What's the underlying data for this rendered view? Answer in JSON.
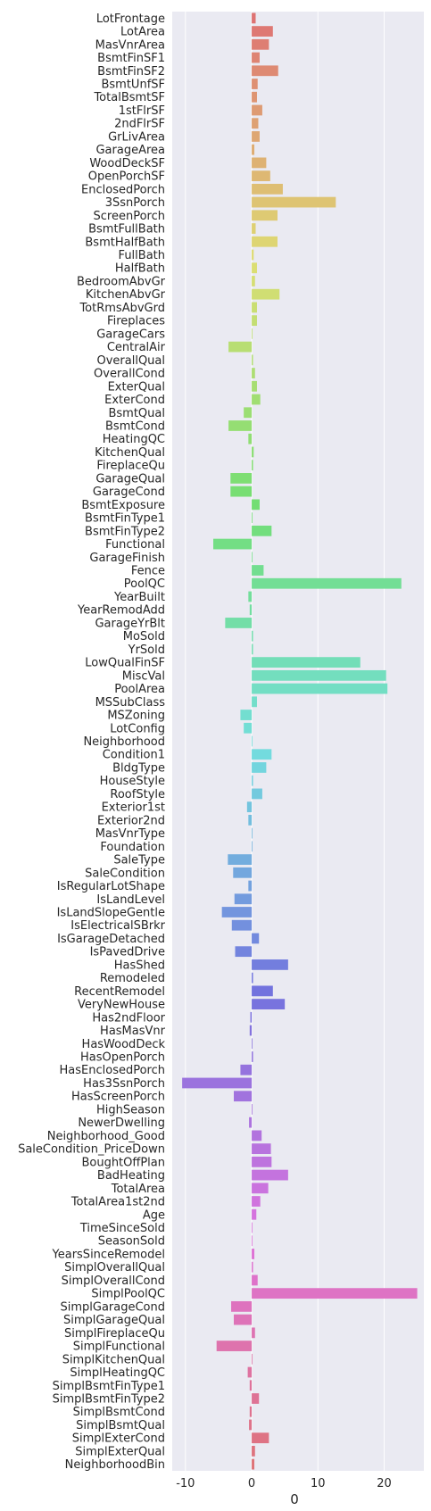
{
  "chart_data": {
    "type": "bar",
    "orientation": "horizontal",
    "xlabel": "0",
    "xlim": [
      -12,
      26
    ],
    "xticks": [
      -10,
      0,
      10,
      20
    ],
    "grid": true,
    "background": "#eaeaf2",
    "palette": "husl",
    "categories": [
      "LotFrontage",
      "LotArea",
      "MasVnrArea",
      "BsmtFinSF1",
      "BsmtFinSF2",
      "BsmtUnfSF",
      "TotalBsmtSF",
      "1stFlrSF",
      "2ndFlrSF",
      "GrLivArea",
      "GarageArea",
      "WoodDeckSF",
      "OpenPorchSF",
      "EnclosedPorch",
      "3SsnPorch",
      "ScreenPorch",
      "BsmtFullBath",
      "BsmtHalfBath",
      "FullBath",
      "HalfBath",
      "BedroomAbvGr",
      "KitchenAbvGr",
      "TotRmsAbvGrd",
      "Fireplaces",
      "GarageCars",
      "CentralAir",
      "OverallQual",
      "OverallCond",
      "ExterQual",
      "ExterCond",
      "BsmtQual",
      "BsmtCond",
      "HeatingQC",
      "KitchenQual",
      "FireplaceQu",
      "GarageQual",
      "GarageCond",
      "BsmtExposure",
      "BsmtFinType1",
      "BsmtFinType2",
      "Functional",
      "GarageFinish",
      "Fence",
      "PoolQC",
      "YearBuilt",
      "YearRemodAdd",
      "GarageYrBlt",
      "MoSold",
      "YrSold",
      "LowQualFinSF",
      "MiscVal",
      "PoolArea",
      "MSSubClass",
      "MSZoning",
      "LotConfig",
      "Neighborhood",
      "Condition1",
      "BldgType",
      "HouseStyle",
      "RoofStyle",
      "Exterior1st",
      "Exterior2nd",
      "MasVnrType",
      "Foundation",
      "SaleType",
      "SaleCondition",
      "IsRegularLotShape",
      "IsLandLevel",
      "IsLandSlopeGentle",
      "IsElectricalSBrkr",
      "IsGarageDetached",
      "IsPavedDrive",
      "HasShed",
      "Remodeled",
      "RecentRemodel",
      "VeryNewHouse",
      "Has2ndFloor",
      "HasMasVnr",
      "HasWoodDeck",
      "HasOpenPorch",
      "HasEnclosedPorch",
      "Has3SsnPorch",
      "HasScreenPorch",
      "HighSeason",
      "NewerDwelling",
      "Neighborhood_Good",
      "SaleCondition_PriceDown",
      "BoughtOffPlan",
      "BadHeating",
      "TotalArea",
      "TotalArea1st2nd",
      "Age",
      "TimeSinceSold",
      "SeasonSold",
      "YearsSinceRemodel",
      "SimplOverallQual",
      "SimplOverallCond",
      "SimplPoolQC",
      "SimplGarageCond",
      "SimplGarageQual",
      "SimplFireplaceQu",
      "SimplFunctional",
      "SimplKitchenQual",
      "SimplHeatingQC",
      "SimplBsmtFinType1",
      "SimplBsmtFinType2",
      "SimplBsmtCond",
      "SimplBsmtQual",
      "SimplExterCond",
      "SimplExterQual",
      "NeighborhoodBin"
    ],
    "values": [
      0.6,
      3.2,
      2.6,
      1.2,
      4.0,
      0.9,
      0.8,
      1.6,
      1.0,
      1.2,
      0.4,
      2.2,
      2.8,
      4.7,
      12.7,
      3.9,
      0.6,
      3.9,
      0.3,
      0.8,
      0.5,
      4.2,
      0.8,
      0.8,
      0.0,
      -3.5,
      0.2,
      0.5,
      0.8,
      1.3,
      -1.2,
      -3.5,
      -0.5,
      0.3,
      0.2,
      -3.2,
      -3.2,
      1.2,
      0.0,
      3.0,
      -5.8,
      0.0,
      1.8,
      22.6,
      -0.5,
      -0.3,
      -4.0,
      0.2,
      0.2,
      16.4,
      20.3,
      20.5,
      0.8,
      -1.7,
      -1.2,
      0.0,
      3.0,
      2.2,
      0.2,
      1.6,
      -0.7,
      -0.5,
      0.0,
      0.0,
      -3.6,
      -2.8,
      -0.5,
      -2.6,
      -4.5,
      -3.0,
      1.1,
      -2.5,
      5.5,
      0.2,
      3.2,
      5.0,
      -0.2,
      -0.3,
      0.0,
      0.2,
      -1.7,
      -10.5,
      -2.7,
      0.0,
      -0.4,
      1.5,
      2.9,
      3.0,
      5.5,
      2.5,
      1.3,
      0.7,
      0.0,
      0.0,
      0.4,
      0.2,
      0.9,
      25.0,
      -3.1,
      -2.7,
      0.5,
      -5.3,
      0.0,
      -0.6,
      -0.3,
      1.1,
      -0.3,
      -0.4,
      2.6,
      0.5,
      0.4
    ]
  }
}
